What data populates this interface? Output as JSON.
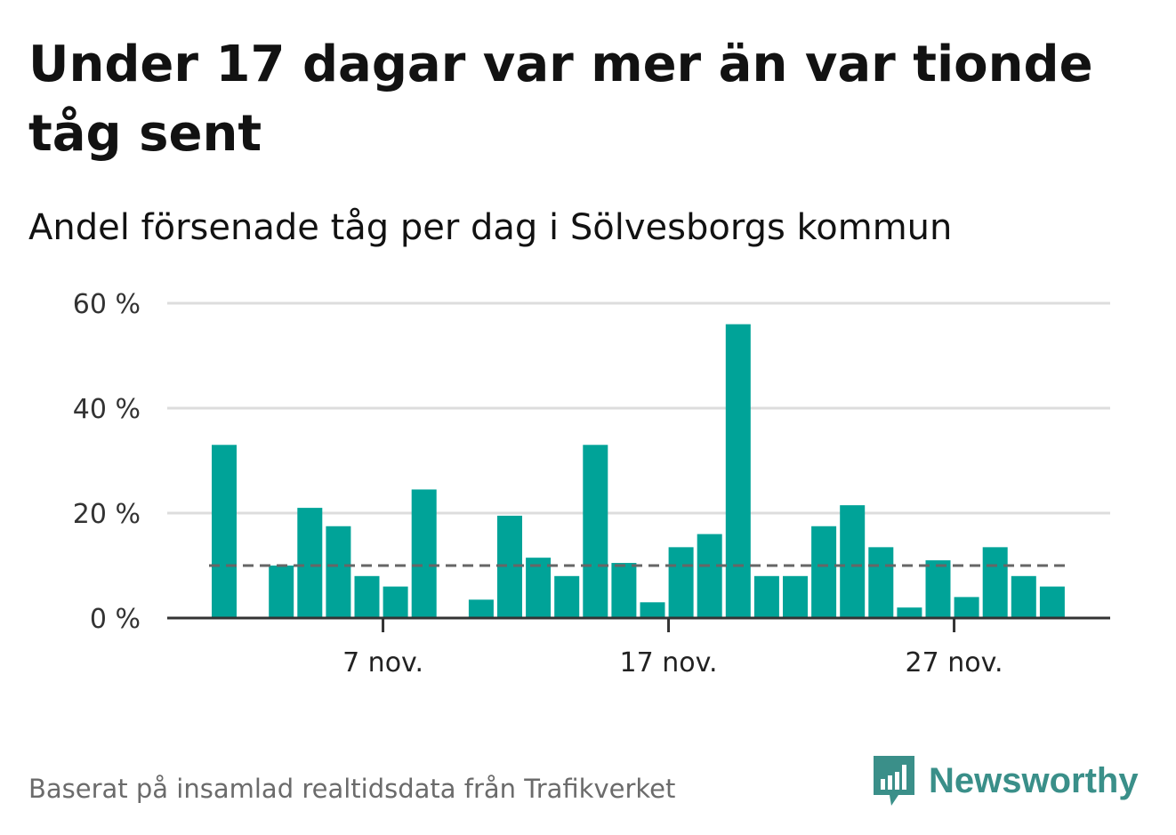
{
  "title": "Under 17 dagar var mer än var tionde tåg sent",
  "subtitle": "Andel försenade tåg per dag i Sölvesborgs kommun",
  "footer": "Baserat på insamlad realtidsdata från Trafikverket",
  "logo": {
    "text": "Newsworthy",
    "icon": "newsworthy-logo-icon"
  },
  "colors": {
    "bar": "#00a398",
    "reference_line": "#666666",
    "grid": "#dddddd",
    "axis": "#333333"
  },
  "chart_data": {
    "type": "bar",
    "title": "Andel försenade tåg per dag i Sölvesborgs kommun",
    "xlabel": "",
    "ylabel": "",
    "ylim": [
      0,
      60
    ],
    "yticks": [
      0,
      20,
      40,
      60
    ],
    "ytick_labels": [
      "0 %",
      "20 %",
      "40 %",
      "60 %"
    ],
    "xtick_labels": [
      {
        "label": "7 nov.",
        "day": 7
      },
      {
        "label": "17 nov.",
        "day": 17
      },
      {
        "label": "27 nov.",
        "day": 27
      }
    ],
    "reference_line": 10,
    "categories": [
      1,
      2,
      3,
      4,
      5,
      6,
      7,
      8,
      9,
      10,
      11,
      12,
      13,
      14,
      15,
      16,
      17,
      18,
      19,
      20,
      21,
      22,
      23,
      24,
      25,
      26,
      27,
      28,
      29,
      30
    ],
    "values": [
      33,
      0,
      10,
      21,
      17.5,
      8,
      6,
      24.5,
      0,
      3.5,
      19.5,
      11.5,
      8,
      33,
      10.5,
      3,
      13.5,
      16,
      56,
      8,
      8,
      17.5,
      21.5,
      13.5,
      2,
      11,
      4,
      13.5,
      8,
      6
    ]
  }
}
